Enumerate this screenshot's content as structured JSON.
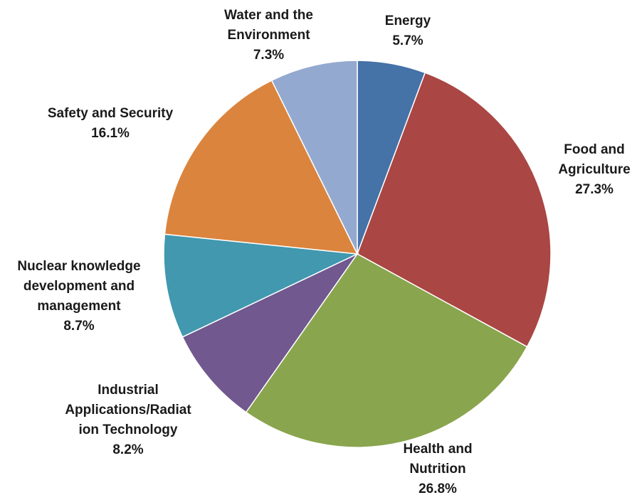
{
  "chart_data": {
    "type": "pie",
    "title": "",
    "start_angle_deg": 0,
    "direction": "clockwise",
    "slices": [
      {
        "key": "energy",
        "lines": [
          "Energy"
        ],
        "pct": "5.7%",
        "value": 5.7,
        "color": "#4572A7"
      },
      {
        "key": "food",
        "lines": [
          "Food and",
          "Agriculture"
        ],
        "pct": "27.3%",
        "value": 27.3,
        "color": "#AA4643"
      },
      {
        "key": "health",
        "lines": [
          "Health and",
          "Nutrition"
        ],
        "pct": "26.8%",
        "value": 26.8,
        "color": "#89A54E"
      },
      {
        "key": "industrial",
        "lines": [
          "Industrial",
          "Applications/Radiat",
          "ion Technology"
        ],
        "pct": "8.2%",
        "value": 8.2,
        "color": "#71588F"
      },
      {
        "key": "nuclear",
        "lines": [
          "Nuclear knowledge",
          "development and",
          "management"
        ],
        "pct": "8.7%",
        "value": 8.7,
        "color": "#4198AF"
      },
      {
        "key": "safety",
        "lines": [
          "Safety and Security"
        ],
        "pct": "16.1%",
        "value": 16.1,
        "color": "#DB843D"
      },
      {
        "key": "water",
        "lines": [
          "Water and the",
          "Environment"
        ],
        "pct": "7.3%",
        "value": 7.3,
        "color": "#93A9CF"
      }
    ]
  }
}
